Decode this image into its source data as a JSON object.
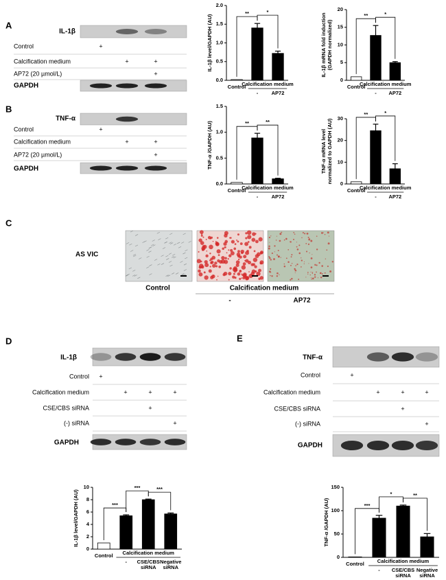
{
  "panels": [
    {
      "label": "A",
      "blot": {
        "protein": "IL-1β",
        "rows": [
          {
            "label": "Control",
            "signs": [
              "+",
              null,
              null
            ]
          },
          {
            "label": "Calcification medium",
            "signs": [
              null,
              "+",
              "+"
            ]
          },
          {
            "label": "AP72 (20 µmol/L)",
            "signs": [
              null,
              null,
              "+"
            ]
          }
        ],
        "loading": "GAPDH"
      }
    },
    {
      "label": "B",
      "blot": {
        "protein": "TNF-α",
        "rows": [
          {
            "label": "Control",
            "signs": [
              "+",
              null,
              null
            ]
          },
          {
            "label": "Calcification medium",
            "signs": [
              null,
              "+",
              "+"
            ]
          },
          {
            "label": "AP72 (20 µmol/L)",
            "signs": [
              null,
              null,
              "+"
            ]
          }
        ],
        "loading": "GAPDH"
      }
    },
    {
      "label": "C",
      "row_label": "AS VIC",
      "control": "Control",
      "group": "Calcification medium",
      "categories": [
        "-",
        "AP72"
      ]
    },
    {
      "label": "D",
      "blot": {
        "protein": "IL-1β",
        "rows": [
          {
            "label": "Control",
            "signs": [
              "+",
              null,
              null,
              null
            ]
          },
          {
            "label": "Calcification medium",
            "signs": [
              null,
              "+",
              "+",
              "+"
            ]
          },
          {
            "label": "CSE/CBS siRNA",
            "signs": [
              null,
              null,
              "+",
              null
            ]
          },
          {
            "label": "(-) siRNA",
            "signs": [
              null,
              null,
              null,
              "+"
            ]
          }
        ],
        "loading": "GAPDH"
      }
    },
    {
      "label": "E",
      "blot": {
        "protein": "TNF-α",
        "rows": [
          {
            "label": "Control",
            "signs": [
              "+",
              null,
              null,
              null
            ]
          },
          {
            "label": "Calcification medium",
            "signs": [
              null,
              "+",
              "+",
              "+"
            ]
          },
          {
            "label": "CSE/CBS siRNA",
            "signs": [
              null,
              null,
              "+",
              null
            ]
          },
          {
            "label": "(-) siRNA",
            "signs": [
              null,
              null,
              null,
              "+"
            ]
          }
        ],
        "loading": "GAPDH"
      }
    }
  ],
  "chart_data": [
    {
      "type": "bar",
      "ylabel": "IL-1β level/GAPDH (AU)",
      "categories": [
        "Control",
        "-",
        "AP72"
      ],
      "group_label": "Calcification medium",
      "values": [
        0.02,
        1.4,
        0.72
      ],
      "errors": [
        null,
        0.12,
        0.06
      ],
      "colors": [
        "#ffffff",
        "#000000",
        "#000000"
      ],
      "ylim": [
        0,
        2
      ],
      "yticks": [
        {
          "value": 0,
          "label": "0.0"
        },
        0.5,
        {
          "value": 1,
          "label": "1.0"
        },
        1.5,
        {
          "value": 2,
          "label": "2.0"
        }
      ],
      "significance": [
        "**",
        "*"
      ]
    },
    {
      "type": "bar",
      "ylabel": [
        "IL-1β mRNA fold induction",
        "(GAPDH normalized)"
      ],
      "categories": [
        "Control",
        "-",
        "AP72"
      ],
      "group_label": "Calcification medium",
      "values": [
        1,
        12.7,
        5
      ],
      "errors": [
        null,
        2.8,
        0.3
      ],
      "colors": [
        "#ffffff",
        "#000000",
        "#000000"
      ],
      "ylim": [
        0,
        20
      ],
      "yticks": [
        0,
        5,
        10,
        15,
        20
      ],
      "significance": [
        "**",
        "*"
      ]
    },
    {
      "type": "bar",
      "ylabel": "TNF-α /GAPDH (AU)",
      "categories": [
        "Control",
        "-",
        "AP72"
      ],
      "group_label": "Calcification medium",
      "values": [
        0.03,
        0.89,
        0.1
      ],
      "errors": [
        null,
        0.09,
        0.01
      ],
      "colors": [
        "#ffffff",
        "#000000",
        "#000000"
      ],
      "ylim": [
        0,
        1.5
      ],
      "yticks": [
        {
          "value": 0,
          "label": "0.0"
        },
        0.5,
        {
          "value": 1,
          "label": "1.0"
        },
        1.5
      ],
      "significance": [
        "**",
        "**"
      ]
    },
    {
      "type": "bar",
      "ylabel": [
        "TNF-α mRNA level",
        "normalized to GAPDH (AU)"
      ],
      "categories": [
        "Control",
        "-",
        "AP72"
      ],
      "group_label": "Calcification medium",
      "values": [
        1,
        24.5,
        7
      ],
      "errors": [
        null,
        3,
        2.3
      ],
      "colors": [
        "#ffffff",
        "#000000",
        "#000000"
      ],
      "ylim": [
        0,
        30
      ],
      "yticks": [
        0,
        10,
        20,
        30
      ],
      "significance": [
        "**",
        "*"
      ]
    },
    {
      "type": "bar",
      "ylabel": "IL-1β level/GAPDH (AU)",
      "categories": [
        "Control",
        "-",
        [
          "CSE/CBS",
          "siRNA"
        ],
        [
          "Negative",
          "siRNA"
        ]
      ],
      "group_label": "Calcification medium",
      "values": [
        1,
        5.4,
        8,
        5.7
      ],
      "errors": [
        null,
        0.15,
        0.1,
        0.15
      ],
      "colors": [
        "#ffffff",
        "#000000",
        "#000000",
        "#000000"
      ],
      "ylim": [
        0,
        10
      ],
      "yticks": [
        0,
        2,
        4,
        6,
        8,
        10
      ],
      "significance": [
        "***",
        "***",
        "***"
      ]
    },
    {
      "type": "bar",
      "ylabel": "TNF-α /GAPDH (AU)",
      "categories": [
        "Control",
        "-",
        [
          "CSE/CBS",
          "siRNA"
        ],
        [
          "Negative",
          "siRNA"
        ]
      ],
      "group_label": "Calcification medium",
      "values": [
        1,
        84,
        110,
        44
      ],
      "errors": [
        null,
        6,
        2,
        7
      ],
      "colors": [
        "#ffffff",
        "#000000",
        "#000000",
        "#000000"
      ],
      "ylim": [
        0,
        150
      ],
      "yticks": [
        0,
        50,
        100,
        150
      ],
      "significance": [
        "***",
        "*",
        "**"
      ]
    }
  ]
}
